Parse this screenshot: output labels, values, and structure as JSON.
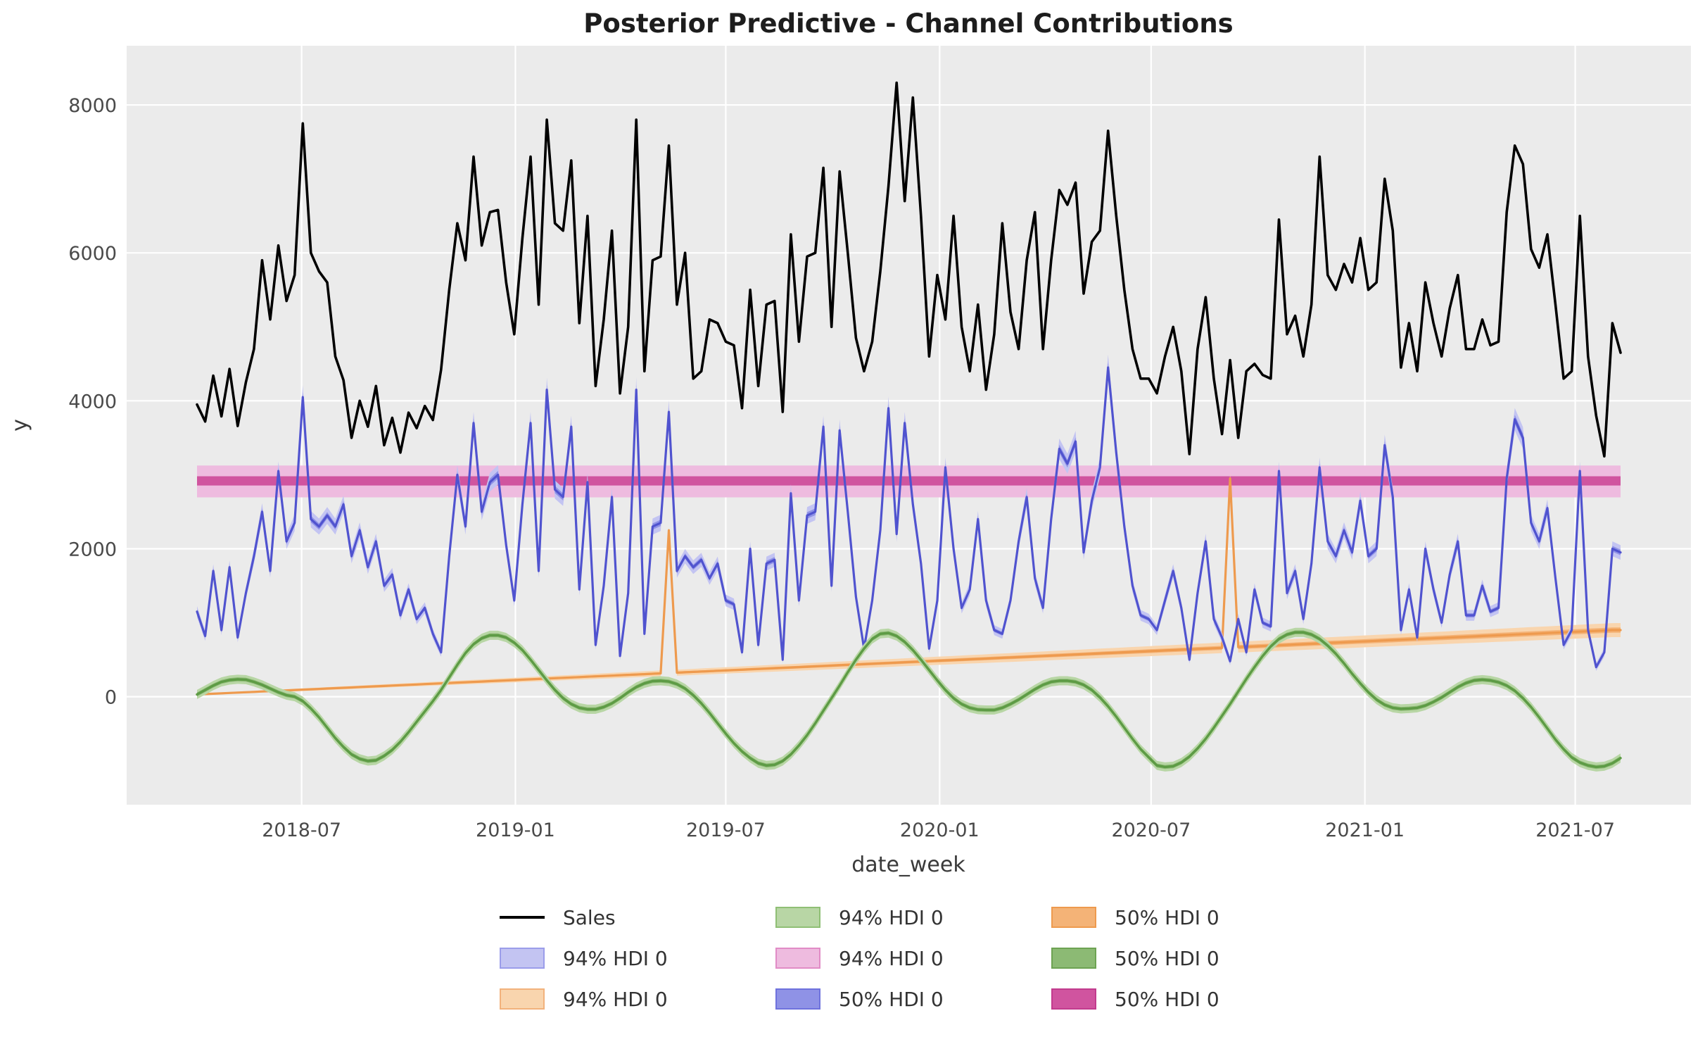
{
  "title": "Posterior Predictive - Channel Contributions",
  "axes": {
    "x_label": "date_week",
    "y_label": "y",
    "x_ticks": [
      {
        "label": "2018-07",
        "week": 12.86
      },
      {
        "label": "2019-01",
        "week": 39.14
      },
      {
        "label": "2019-07",
        "week": 65.0
      },
      {
        "label": "2020-01",
        "week": 91.29
      },
      {
        "label": "2020-07",
        "week": 117.29
      },
      {
        "label": "2021-01",
        "week": 143.57
      },
      {
        "label": "2021-07",
        "week": 169.43
      }
    ],
    "y_ticks": [
      {
        "label": "0",
        "value": 0
      },
      {
        "label": "2000",
        "value": 2000
      },
      {
        "label": "4000",
        "value": 4000
      },
      {
        "label": "6000",
        "value": 6000
      },
      {
        "label": "8000",
        "value": 8000
      }
    ]
  },
  "colors": {
    "plot_bg": "#ebebeb",
    "grid": "#ffffff",
    "sales_line": "#000000",
    "blue_line": "#5053cf",
    "blue_hdi50": "#8f92e6",
    "blue_hdi94": "#c3c4f2",
    "green_line": "#5d9b45",
    "green_hdi50": "#8cba74",
    "green_hdi94": "#b8d6a5",
    "orange_line": "#ee9a4e",
    "orange_hdi50": "#f4b377",
    "orange_hdi94": "#f9d5ae",
    "pink_hdi50": "#d0549f",
    "pink_hdi94": "#eebbdf",
    "title_text": "#1d1d1d",
    "tick_text": "#4a4a4a"
  },
  "legend": {
    "items": [
      {
        "label": "Sales",
        "kind": "line",
        "color": "#000000"
      },
      {
        "label": "94% HDI 0",
        "kind": "patch",
        "fill": "#b8d6a5",
        "edge": "#8fbf75"
      },
      {
        "label": "50% HDI 0",
        "kind": "patch",
        "fill": "#f4b377",
        "edge": "#ee9a4e"
      },
      {
        "label": "94% HDI 0",
        "kind": "patch",
        "fill": "#c3c4f2",
        "edge": "#9b9dea"
      },
      {
        "label": "94% HDI 0",
        "kind": "patch",
        "fill": "#eebbdf",
        "edge": "#e18cc6"
      },
      {
        "label": "50% HDI 0",
        "kind": "patch",
        "fill": "#8cba74",
        "edge": "#6da352"
      },
      {
        "label": "94% HDI 0",
        "kind": "patch",
        "fill": "#f9d5ae",
        "edge": "#f2b27c"
      },
      {
        "label": "50% HDI 0",
        "kind": "patch",
        "fill": "#8f92e6",
        "edge": "#6f72dd"
      },
      {
        "label": "50% HDI 0",
        "kind": "patch",
        "fill": "#d0549f",
        "edge": "#c23b8e"
      }
    ]
  },
  "chart_data": {
    "type": "line",
    "title": "Posterior Predictive - Channel Contributions",
    "xlabel": "date_week",
    "ylabel": "y",
    "x_start_date": "2018-04-02",
    "x_step_days": 7,
    "n_weeks": 176,
    "ylim": [
      -1460,
      8800
    ],
    "grid": true,
    "legend_position": "below",
    "series": [
      {
        "name": "Sales",
        "kind": "line",
        "color_key": "sales_line",
        "values": [
          3950,
          3720,
          4340,
          3790,
          4430,
          3660,
          4250,
          4700,
          5900,
          5100,
          6100,
          5350,
          5700,
          7750,
          6000,
          5750,
          5600,
          4600,
          4280,
          3500,
          4000,
          3650,
          4200,
          3400,
          3770,
          3300,
          3840,
          3630,
          3930,
          3740,
          4420,
          5500,
          6400,
          5900,
          7300,
          6100,
          6550,
          6580,
          5600,
          4900,
          6200,
          7300,
          5300,
          7800,
          6400,
          6300,
          7250,
          5050,
          6500,
          4200,
          5100,
          6300,
          4100,
          5000,
          7800,
          4400,
          5900,
          5950,
          7450,
          5300,
          6000,
          4300,
          4400,
          5100,
          5050,
          4800,
          4750,
          3900,
          5500,
          4200,
          5300,
          5350,
          3850,
          6250,
          4800,
          5950,
          6000,
          7150,
          5000,
          7100,
          6000,
          4850,
          4400,
          4800,
          5750,
          6900,
          8300,
          6700,
          8100,
          6500,
          4600,
          5700,
          5100,
          6500,
          5000,
          4400,
          5300,
          4150,
          4900,
          6400,
          5200,
          4700,
          5900,
          6550,
          4700,
          5900,
          6850,
          6650,
          6950,
          5450,
          6150,
          6300,
          7650,
          6500,
          5500,
          4700,
          4300,
          4300,
          4100,
          4600,
          5000,
          4400,
          3280,
          4700,
          5400,
          4300,
          3550,
          4550,
          3500,
          4400,
          4500,
          4350,
          4300,
          6450,
          4900,
          5150,
          4600,
          5300,
          7300,
          5700,
          5500,
          5850,
          5600,
          6200,
          5500,
          5600,
          7000,
          6300,
          4450,
          5050,
          4400,
          5600,
          5050,
          4600,
          5250,
          5700,
          4700,
          4700,
          5100,
          4750,
          4800,
          6550,
          7450,
          7200,
          6050,
          5800,
          6250,
          5300,
          4300,
          4400,
          6500,
          4600,
          3800,
          3250,
          5050,
          4650
        ]
      },
      {
        "name": "channel-contribution-blue",
        "kind": "line-with-hdi",
        "color_key": "blue_line",
        "hdi50_key": "blue_hdi50",
        "hdi94_key": "blue_hdi94",
        "hdi94_halfwidth": {
          "base": 40,
          "frac_of_value": 0.03
        },
        "hdi50_halfwidth": {
          "base": 15,
          "frac_of_value": 0.012
        },
        "values": [
          1150,
          820,
          1700,
          900,
          1750,
          800,
          1400,
          1900,
          2500,
          1700,
          3050,
          2100,
          2350,
          4050,
          2400,
          2300,
          2450,
          2300,
          2600,
          1900,
          2250,
          1750,
          2100,
          1500,
          1650,
          1100,
          1450,
          1050,
          1200,
          850,
          600,
          1900,
          3000,
          2300,
          3700,
          2500,
          2900,
          3000,
          2050,
          1300,
          2600,
          3700,
          1700,
          4150,
          2800,
          2700,
          3650,
          1450,
          2900,
          700,
          1500,
          2700,
          550,
          1400,
          4150,
          850,
          2300,
          2350,
          3850,
          1700,
          1900,
          1750,
          1850,
          1600,
          1800,
          1300,
          1250,
          600,
          2000,
          700,
          1800,
          1850,
          500,
          2750,
          1300,
          2450,
          2500,
          3650,
          1500,
          3600,
          2500,
          1350,
          650,
          1300,
          2250,
          3900,
          2200,
          3700,
          2600,
          1800,
          650,
          1300,
          3100,
          2000,
          1200,
          1450,
          2400,
          1300,
          900,
          850,
          1300,
          2100,
          2700,
          1600,
          1200,
          2400,
          3350,
          3150,
          3450,
          1950,
          2650,
          3100,
          4450,
          3300,
          2300,
          1500,
          1100,
          1050,
          900,
          1300,
          1700,
          1200,
          500,
          1400,
          2100,
          1050,
          800,
          480,
          1050,
          600,
          1450,
          1000,
          950,
          3050,
          1400,
          1700,
          1050,
          1800,
          3100,
          2100,
          1900,
          2250,
          1950,
          2650,
          1900,
          2000,
          3400,
          2700,
          900,
          1450,
          800,
          2000,
          1450,
          1000,
          1650,
          2100,
          1100,
          1100,
          1500,
          1150,
          1200,
          2950,
          3750,
          3500,
          2350,
          2100,
          2550,
          1600,
          700,
          900,
          3050,
          900,
          400,
          600,
          2000,
          1950
        ]
      },
      {
        "name": "seasonality-green",
        "kind": "line-with-hdi",
        "color_key": "green_line",
        "hdi50_key": "green_hdi50",
        "hdi94_key": "green_hdi94",
        "hdi94_halfwidth": {
          "base": 62,
          "frac_of_value": 0
        },
        "hdi50_halfwidth": {
          "base": 27,
          "frac_of_value": 0
        },
        "values": [
          30,
          90,
          150,
          200,
          225,
          235,
          230,
          200,
          160,
          110,
          60,
          20,
          0,
          -60,
          -160,
          -280,
          -420,
          -560,
          -680,
          -780,
          -840,
          -870,
          -860,
          -800,
          -720,
          -610,
          -480,
          -340,
          -200,
          -60,
          90,
          260,
          430,
          590,
          710,
          790,
          830,
          830,
          800,
          730,
          630,
          500,
          360,
          220,
          90,
          -20,
          -100,
          -150,
          -170,
          -170,
          -140,
          -90,
          -20,
          60,
          130,
          180,
          210,
          215,
          205,
          170,
          110,
          20,
          -90,
          -220,
          -360,
          -500,
          -630,
          -740,
          -830,
          -900,
          -930,
          -920,
          -870,
          -780,
          -660,
          -520,
          -360,
          -190,
          -20,
          150,
          330,
          500,
          650,
          780,
          850,
          860,
          820,
          740,
          630,
          500,
          360,
          220,
          90,
          -20,
          -100,
          -150,
          -175,
          -180,
          -180,
          -150,
          -100,
          -40,
          30,
          100,
          160,
          200,
          215,
          215,
          200,
          160,
          90,
          -10,
          -130,
          -270,
          -420,
          -570,
          -710,
          -820,
          -930,
          -950,
          -940,
          -890,
          -810,
          -700,
          -570,
          -420,
          -260,
          -100,
          70,
          240,
          400,
          550,
          680,
          780,
          840,
          870,
          870,
          840,
          780,
          690,
          580,
          450,
          310,
          180,
          60,
          -40,
          -110,
          -150,
          -165,
          -160,
          -150,
          -120,
          -70,
          -10,
          60,
          130,
          185,
          220,
          230,
          220,
          195,
          150,
          80,
          -20,
          -140,
          -280,
          -430,
          -580,
          -710,
          -820,
          -890,
          -930,
          -950,
          -940,
          -900,
          -830
        ]
      },
      {
        "name": "trend-orange",
        "kind": "line-with-hdi",
        "color_key": "orange_line",
        "hdi50_key": "orange_hdi50",
        "hdi94_key": "orange_hdi94",
        "hdi94_halfwidth": {
          "base": 12,
          "per_week": 0.475
        },
        "hdi50_halfwidth": {
          "base": 5,
          "per_week": 0.175
        },
        "spikes": [
          {
            "week": 58,
            "value": 2250
          },
          {
            "week": 127,
            "value": 2950
          }
        ],
        "values": [
          30,
          35,
          40,
          45,
          50,
          55,
          60,
          65,
          70,
          75,
          80,
          85,
          90,
          95,
          100,
          105,
          110,
          115,
          120,
          125,
          130,
          135,
          140,
          145,
          150,
          155,
          160,
          165,
          170,
          175,
          180,
          185,
          190,
          195,
          200,
          205,
          210,
          215,
          220,
          225,
          230,
          235,
          240,
          245,
          250,
          255,
          260,
          265,
          270,
          275,
          280,
          285,
          290,
          295,
          300,
          305,
          310,
          315,
          2250,
          325,
          330,
          335,
          340,
          345,
          350,
          355,
          360,
          365,
          370,
          375,
          380,
          385,
          390,
          395,
          400,
          405,
          410,
          415,
          420,
          425,
          430,
          435,
          440,
          445,
          450,
          455,
          460,
          465,
          470,
          475,
          480,
          485,
          490,
          495,
          500,
          505,
          510,
          515,
          520,
          525,
          530,
          535,
          540,
          545,
          550,
          555,
          560,
          565,
          570,
          575,
          580,
          585,
          590,
          595,
          600,
          605,
          610,
          615,
          620,
          625,
          630,
          635,
          640,
          645,
          650,
          655,
          660,
          2950,
          670,
          675,
          680,
          685,
          690,
          695,
          700,
          705,
          710,
          715,
          720,
          725,
          730,
          735,
          740,
          745,
          750,
          755,
          760,
          765,
          770,
          775,
          780,
          785,
          790,
          795,
          800,
          805,
          810,
          815,
          820,
          825,
          830,
          835,
          840,
          845,
          850,
          855,
          860,
          865,
          870,
          875,
          880,
          885,
          890,
          895,
          900,
          900
        ]
      },
      {
        "name": "intercept-pink",
        "kind": "hband",
        "hdi94": [
          2695,
          3125
        ],
        "hdi50": [
          2855,
          2980
        ],
        "hdi94_key": "pink_hdi94",
        "hdi50_key": "pink_hdi50"
      }
    ]
  }
}
